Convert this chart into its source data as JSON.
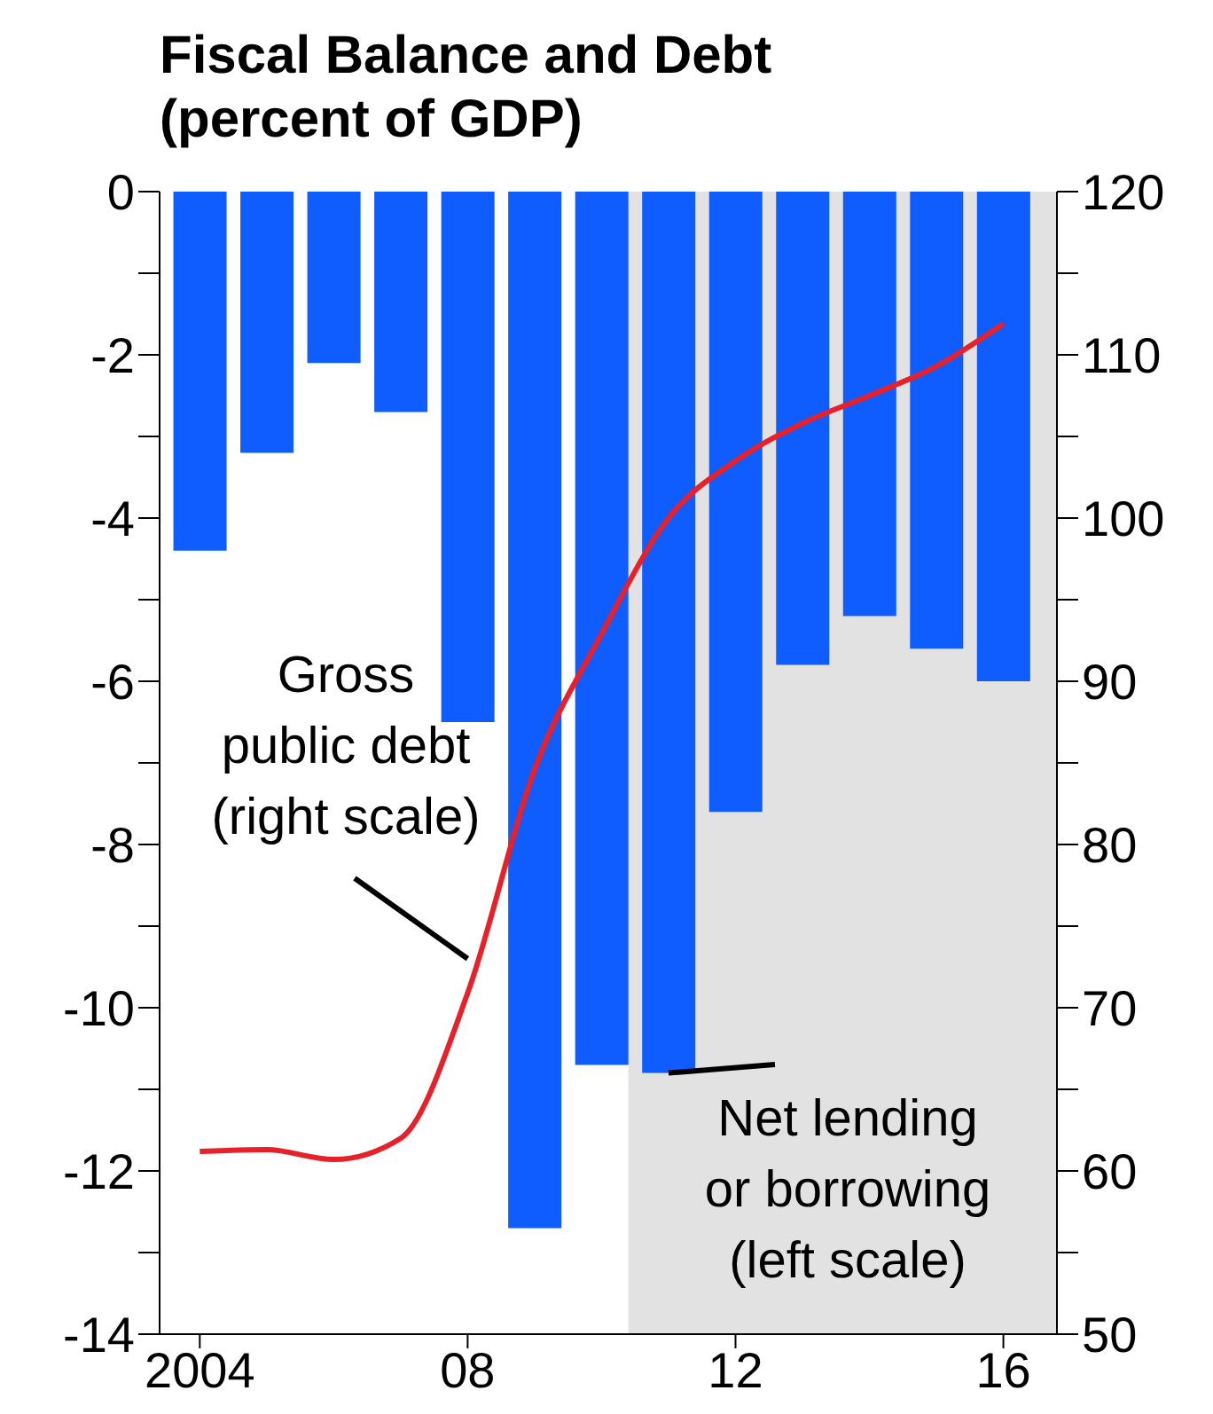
{
  "chart_data": {
    "type": "bar",
    "title": "Fiscal Balance and Debt",
    "subtitle": "(percent of GDP)",
    "x": [
      2004,
      2005,
      2006,
      2007,
      2008,
      2009,
      2010,
      2011,
      2012,
      2013,
      2014,
      2015,
      2016
    ],
    "xlim": [
      2003.4,
      2016.8
    ],
    "xticks": [
      {
        "value": 2004,
        "label": "2004"
      },
      {
        "value": 2008,
        "label": "08"
      },
      {
        "value": 2012,
        "label": "12"
      },
      {
        "value": 2016,
        "label": "16"
      }
    ],
    "series": [
      {
        "color": "#0f5cff",
        "values": [
          -4.4,
          -3.2,
          -2.1,
          -2.7,
          -6.5,
          -12.7,
          -10.7,
          -10.8,
          -7.6,
          -5.8,
          -5.2,
          -5.6,
          -6.0
        ]
      },
      {
        "type": "line",
        "axis": "y2",
        "color": "#e8202a",
        "values": [
          61.2,
          61.3,
          60.7,
          62.0,
          70.9,
          84.6,
          92.9,
          100.0,
          103.5,
          105.8,
          107.5,
          109.3,
          111.9
        ]
      }
    ],
    "ylim": [
      -14,
      0
    ],
    "yticks": [
      -14,
      {
        "value": -13,
        "label": null
      },
      -12,
      {
        "value": -11,
        "label": null
      },
      -10,
      {
        "value": -9,
        "label": null
      },
      -8,
      {
        "value": -7,
        "label": null
      },
      -6,
      {
        "value": -5,
        "label": null
      },
      -4,
      {
        "value": -3,
        "label": null
      },
      -2,
      {
        "value": -1,
        "label": null
      },
      0
    ],
    "y2lim": [
      50,
      120
    ],
    "y2ticks": [
      50,
      {
        "value": 55,
        "label": null
      },
      60,
      {
        "value": 65,
        "label": null
      },
      70,
      {
        "value": 75,
        "label": null
      },
      80,
      {
        "value": 85,
        "label": null
      },
      90,
      {
        "value": 95,
        "label": null
      },
      100,
      {
        "value": 105,
        "label": null
      },
      110,
      {
        "value": 115,
        "label": null
      },
      120
    ],
    "bands": [
      {
        "axis": "x",
        "from": 2010.4,
        "to": 2016.8,
        "color": "#e2e2e2"
      }
    ],
    "annotations": [
      {
        "text": "Gross public debt (right scale)",
        "x": 2008,
        "y": -9.4
      },
      {
        "text": "Net lending or borrowing (left scale)",
        "x": 2011,
        "y": -10.8
      }
    ],
    "marker": "none",
    "line_style": "solid",
    "grid": false,
    "legend": false
  }
}
